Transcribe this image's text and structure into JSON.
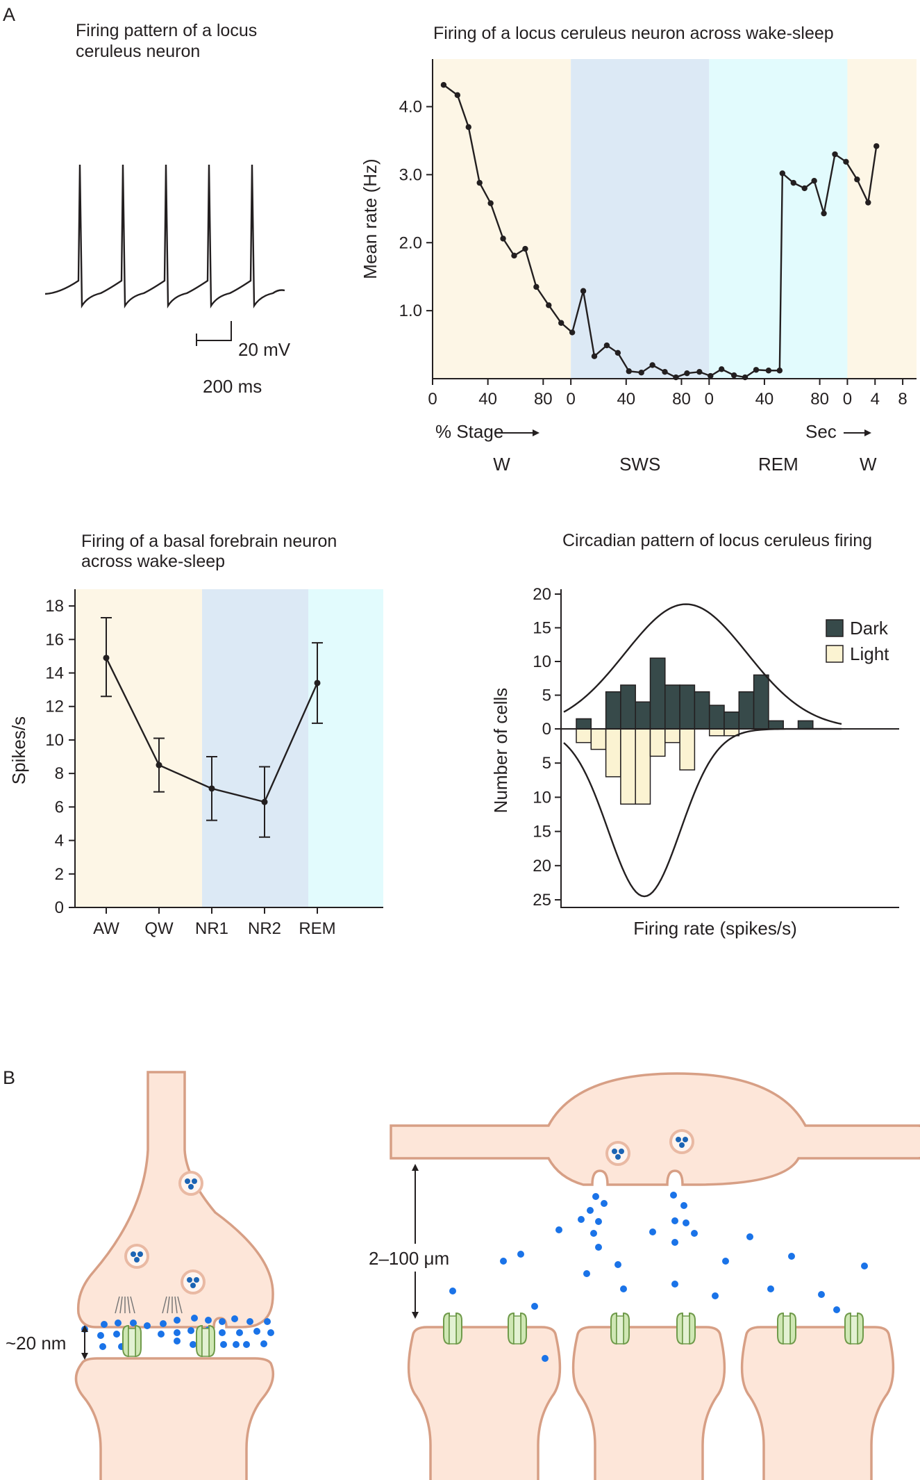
{
  "panel_labels": {
    "a": "A",
    "b": "B"
  },
  "chart_data": [
    {
      "type": "line",
      "title_lines": [
        "Firing pattern of a locus",
        "ceruleus neuron"
      ],
      "trace_spikes": 5,
      "scale_bar": {
        "voltage": "20 mV",
        "time": "200 ms"
      }
    },
    {
      "type": "line",
      "title": "Firing of a locus ceruleus neuron across wake-sleep",
      "ylabel": "Mean rate (Hz)",
      "ylim": [
        0,
        4.7
      ],
      "y_ticks": [
        {
          "v": 1.0,
          "label": "1.0"
        },
        {
          "v": 2.0,
          "label": "2.0"
        },
        {
          "v": 3.0,
          "label": "3.0"
        },
        {
          "v": 4.0,
          "label": "4.0"
        }
      ],
      "x_ticks": [
        {
          "x": 0,
          "label": "0"
        },
        {
          "x": 40,
          "label": "40"
        },
        {
          "x": 80,
          "label": "80"
        },
        {
          "x": 100,
          "label": "0"
        },
        {
          "x": 140,
          "label": "40"
        },
        {
          "x": 180,
          "label": "80"
        },
        {
          "x": 200,
          "label": "0"
        },
        {
          "x": 240,
          "label": "40"
        },
        {
          "x": 280,
          "label": "80"
        },
        {
          "x": 300,
          "label": "0"
        },
        {
          "x": 320,
          "label": "4"
        },
        {
          "x": 340,
          "label": "8"
        }
      ],
      "x_end": 350,
      "stage_note": "% Stage",
      "sec_note": "Sec",
      "stages": [
        {
          "label": "W",
          "start": 0,
          "end": 100,
          "color": "#fdf6e6"
        },
        {
          "label": "SWS",
          "start": 100,
          "end": 200,
          "color": "#dce9f5"
        },
        {
          "label": "REM",
          "start": 200,
          "end": 300,
          "color": "#e2fbfd"
        },
        {
          "label": "W",
          "start": 300,
          "end": 350,
          "color": "#fdf6e6"
        }
      ],
      "points": [
        [
          8,
          4.32
        ],
        [
          18,
          4.17
        ],
        [
          26,
          3.7
        ],
        [
          34,
          2.88
        ],
        [
          42,
          2.58
        ],
        [
          51,
          2.06
        ],
        [
          59,
          1.81
        ],
        [
          67,
          1.91
        ],
        [
          75,
          1.35
        ],
        [
          84,
          1.08
        ],
        [
          93,
          0.82
        ],
        [
          101,
          0.68
        ],
        [
          109,
          1.29
        ],
        [
          117,
          0.33
        ],
        [
          126,
          0.49
        ],
        [
          134,
          0.38
        ],
        [
          142,
          0.11
        ],
        [
          151,
          0.09
        ],
        [
          159,
          0.2
        ],
        [
          168,
          0.1
        ],
        [
          176,
          0.02
        ],
        [
          184,
          0.08
        ],
        [
          193,
          0.1
        ],
        [
          201,
          0.04
        ],
        [
          209,
          0.14
        ],
        [
          218,
          0.05
        ],
        [
          226,
          0.02
        ],
        [
          234,
          0.13
        ],
        [
          243,
          0.12
        ],
        [
          251,
          0.12
        ],
        [
          253,
          3.02
        ],
        [
          261,
          2.88
        ],
        [
          269,
          2.8
        ],
        [
          276,
          2.91
        ],
        [
          283,
          2.43
        ],
        [
          291,
          3.3
        ],
        [
          299,
          3.19
        ],
        [
          307,
          2.93
        ],
        [
          315,
          2.59
        ],
        [
          321,
          3.42
        ]
      ]
    },
    {
      "type": "line",
      "title_lines": [
        "Firing of a basal forebrain neuron",
        "across wake-sleep"
      ],
      "ylabel": "Spikes/s",
      "ylim": [
        0,
        19
      ],
      "y_ticks": [
        0,
        2,
        4,
        6,
        8,
        10,
        12,
        14,
        16,
        18
      ],
      "categories": [
        "AW",
        "QW",
        "NR1",
        "NR2",
        "REM"
      ],
      "values": [
        14.9,
        8.5,
        7.1,
        6.3,
        13.4
      ],
      "err_upper": [
        17.3,
        10.1,
        9.0,
        8.4,
        15.8
      ],
      "err_lower": [
        12.6,
        6.9,
        5.2,
        4.2,
        11.0
      ],
      "bands": [
        {
          "from": 0,
          "to": 2,
          "color": "#fdf6e6"
        },
        {
          "from": 2,
          "to": 4,
          "color": "#dce9f5"
        },
        {
          "from": 4,
          "to": 5,
          "color": "#e2fbfd"
        }
      ]
    },
    {
      "type": "bar",
      "title": "Circadian pattern of locus ceruleus firing",
      "xlabel": "Firing rate (spikes/s)",
      "ylabel": "Number of cells",
      "ylim_up": [
        0,
        20
      ],
      "ylim_down": [
        0,
        25
      ],
      "y_ticks_up": [
        0,
        5,
        10,
        15,
        20
      ],
      "y_ticks_down": [
        5,
        10,
        15,
        20,
        25
      ],
      "bin_start": 1,
      "bins": 19,
      "series": [
        {
          "name": "Dark",
          "color": "#374a4a",
          "values": [
            1.5,
            0,
            5.5,
            6.5,
            4,
            10.5,
            6.5,
            6.5,
            5.5,
            3.5,
            2.5,
            5.5,
            8,
            1.2,
            0,
            1.2,
            0,
            0,
            0
          ]
        },
        {
          "name": "Light",
          "color": "#fbf3d2",
          "values": [
            2,
            3,
            7,
            11,
            11,
            4,
            2,
            6,
            0,
            1,
            1,
            0,
            0,
            0,
            0,
            0,
            0,
            0,
            0
          ]
        }
      ],
      "legend_position": "top-right"
    }
  ],
  "diagram": {
    "gap_label": "~20 nm",
    "distance_label": "2–100 μm"
  }
}
